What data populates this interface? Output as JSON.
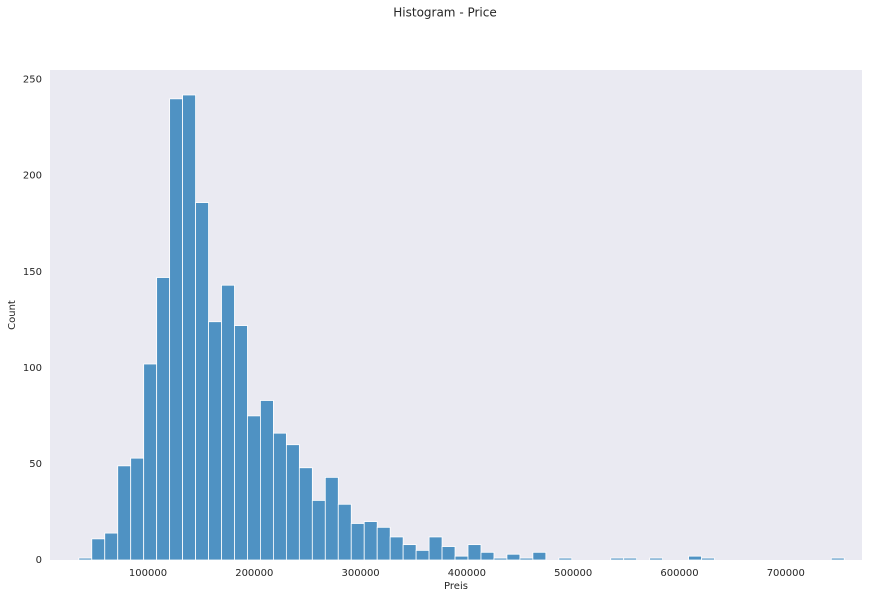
{
  "chart_data": {
    "type": "histogram",
    "title": "Histogram - Price",
    "x_label": "Preis",
    "y_label": "Count",
    "bins": [
      34900,
      47105,
      59310,
      71515,
      83720,
      95925,
      108130,
      120335,
      132540,
      144745,
      156950,
      169155,
      181360,
      193565,
      205770,
      217975,
      230180,
      242385,
      254590,
      266795,
      279000,
      291205,
      303410,
      315615,
      327820,
      340025,
      352230,
      364435,
      376640,
      388845,
      401050,
      413255,
      425460,
      437665,
      449870,
      462075,
      474280,
      486485,
      498690,
      510895,
      523100,
      535305,
      547510,
      559715,
      571920,
      584125,
      596330,
      608535,
      620740,
      632945,
      645150,
      657355,
      669560,
      681765,
      693970,
      706175,
      718380,
      730585,
      742790,
      755000
    ],
    "values": [
      1,
      11,
      14,
      49,
      53,
      102,
      147,
      240,
      242,
      186,
      124,
      143,
      122,
      75,
      83,
      66,
      60,
      48,
      31,
      43,
      29,
      19,
      20,
      17,
      12,
      8,
      5,
      12,
      7,
      2,
      8,
      4,
      1,
      3,
      1,
      4,
      0,
      1,
      0,
      0,
      0,
      1,
      1,
      0,
      1,
      0,
      0,
      2,
      1,
      0,
      0,
      0,
      0,
      0,
      0,
      0,
      0,
      0,
      1
    ],
    "color": "#4f92c3",
    "xlim": [
      7800,
      771700
    ],
    "ylim": [
      0,
      255
    ],
    "xticks": [
      100000,
      200000,
      300000,
      400000,
      500000,
      600000,
      700000
    ],
    "yticks": [
      0,
      50,
      100,
      150,
      200,
      250
    ],
    "grid": false
  }
}
